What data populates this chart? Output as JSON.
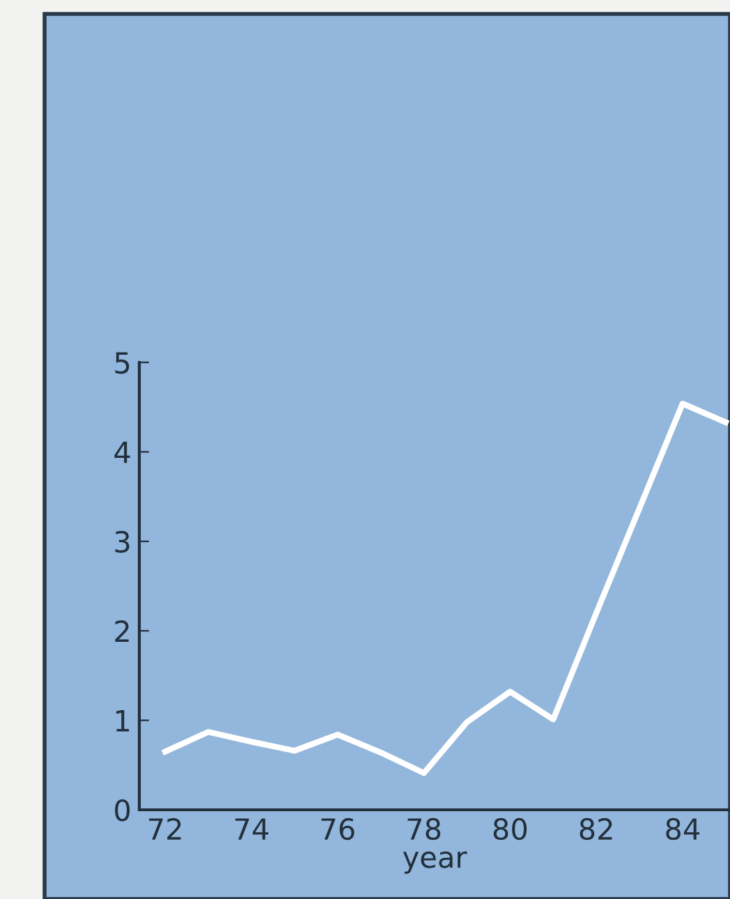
{
  "chart_data": {
    "type": "line",
    "xlabel": "year",
    "x": [
      72,
      73,
      74,
      75,
      76,
      77,
      78,
      79,
      80,
      81,
      82,
      83,
      84,
      85
    ],
    "series": [
      {
        "color": "#ffffff",
        "values": [
          0.65,
          0.87,
          0.76,
          0.66,
          0.84,
          0.64,
          0.41,
          0.98,
          1.32,
          1.01,
          2.2,
          3.37,
          4.54,
          4.33
        ]
      }
    ],
    "xlim": [
      71.4,
      85.1
    ],
    "ylim": [
      0,
      5
    ],
    "xticks": [
      72,
      74,
      76,
      78,
      80,
      82,
      84
    ],
    "yticks": [
      0,
      1,
      2,
      3,
      4,
      5
    ],
    "grid": false,
    "legend": false,
    "marker": "none",
    "line_style": "solid"
  }
}
